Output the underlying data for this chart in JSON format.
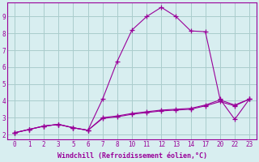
{
  "xlabel": "Windchill (Refroidissement éolien,°C)",
  "line_color": "#990099",
  "bg_color": "#d8eef0",
  "grid_color": "#aacccc",
  "xtick_labels": [
    "0",
    "1",
    "2",
    "3",
    "5",
    "6",
    "7",
    "8",
    "10",
    "11",
    "12",
    "13",
    "14",
    "17",
    "20",
    "22",
    "23"
  ],
  "yticks": [
    2,
    3,
    4,
    5,
    6,
    7,
    8,
    9
  ],
  "ylim": [
    1.7,
    9.85
  ],
  "series1_y": [
    2.1,
    2.3,
    2.5,
    2.6,
    2.4,
    2.25,
    4.1,
    6.35,
    8.2,
    9.0,
    9.55,
    9.0,
    8.15,
    8.1,
    4.1,
    2.9,
    4.1
  ],
  "series2_y": [
    2.1,
    2.3,
    2.5,
    2.6,
    2.4,
    2.25,
    3.0,
    3.1,
    3.25,
    3.35,
    3.45,
    3.5,
    3.55,
    3.75,
    4.05,
    3.75,
    4.1
  ],
  "series3_y": [
    2.1,
    2.3,
    2.5,
    2.6,
    2.4,
    2.25,
    2.95,
    3.05,
    3.2,
    3.3,
    3.4,
    3.45,
    3.5,
    3.7,
    3.95,
    3.7,
    4.1
  ],
  "marker": "+",
  "markersize": 4,
  "linewidth": 0.8
}
